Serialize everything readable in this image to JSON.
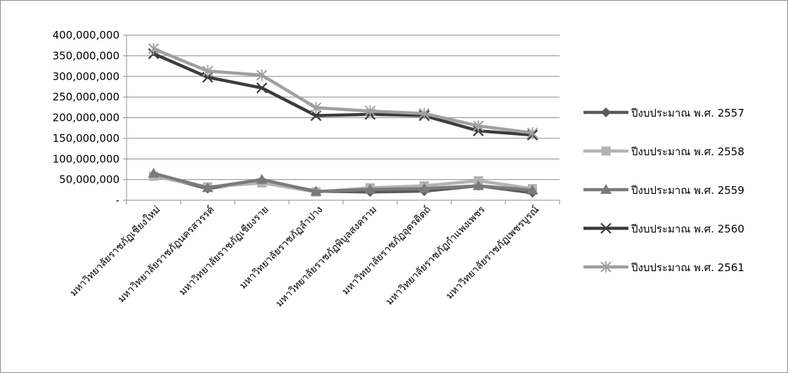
{
  "chart_data": {
    "type": "line",
    "title": "",
    "xlabel": "",
    "ylabel": "",
    "ylim": [
      0,
      400000000
    ],
    "y_ticks": [
      {
        "value": 0,
        "label": "-"
      },
      {
        "value": 50000000,
        "label": "50,000,000"
      },
      {
        "value": 100000000,
        "label": "100,000,000"
      },
      {
        "value": 150000000,
        "label": "150,000,000"
      },
      {
        "value": 200000000,
        "label": "200,000,000"
      },
      {
        "value": 250000000,
        "label": "250,000,000"
      },
      {
        "value": 300000000,
        "label": "300,000,000"
      },
      {
        "value": 350000000,
        "label": "350,000,000"
      },
      {
        "value": 400000000,
        "label": "400,000,000"
      }
    ],
    "grid": true,
    "legend_position": "right",
    "categories": [
      "มหาวิทยาลัยราชภัฏเชียงใหม่",
      "มหาวิทยาลัยราชภัฏนครสวรรค์",
      "มหาวิทยาลัยราชภัฏเชียงราย",
      "มหาวิทยาลัยราชภัฏลำปาง",
      "มหาวิทยาลัยราชภัฏพิบูลสงคราม",
      "มหาวิทยาลัยราชภัฏอุตรดิตถ์",
      "มหาวิทยาลัยราชภัฏกำแพงเพชร",
      "มหาวิทยาลัยราชภัฏเพชรบูรณ์"
    ],
    "series": [
      {
        "name": "ปีงบประมาณ พ.ศ. 2557",
        "color": "#5a5a5a",
        "marker": "diamond",
        "values": [
          62000000,
          28000000,
          48000000,
          22000000,
          20000000,
          22000000,
          35000000,
          18000000
        ]
      },
      {
        "name": "ปีงบประมาณ พ.ศ. 2558",
        "color": "#b3b3b3",
        "marker": "square",
        "values": [
          58000000,
          32000000,
          42000000,
          20000000,
          30000000,
          35000000,
          47000000,
          28000000
        ]
      },
      {
        "name": "ปีงบประมาณ พ.ศ. 2559",
        "color": "#7a7a7a",
        "marker": "triangle",
        "values": [
          65000000,
          30000000,
          50000000,
          21000000,
          26000000,
          28000000,
          35000000,
          24000000
        ]
      },
      {
        "name": "ปีงบประมาณ พ.ศ. 2560",
        "color": "#3c3c3c",
        "marker": "x",
        "values": [
          355000000,
          298000000,
          272000000,
          205000000,
          208000000,
          205000000,
          168000000,
          158000000
        ]
      },
      {
        "name": "ปีงบประมาณ พ.ศ. 2561",
        "color": "#a0a0a0",
        "marker": "asterisk",
        "values": [
          367000000,
          313000000,
          303000000,
          224000000,
          216000000,
          210000000,
          180000000,
          163000000
        ]
      }
    ]
  }
}
